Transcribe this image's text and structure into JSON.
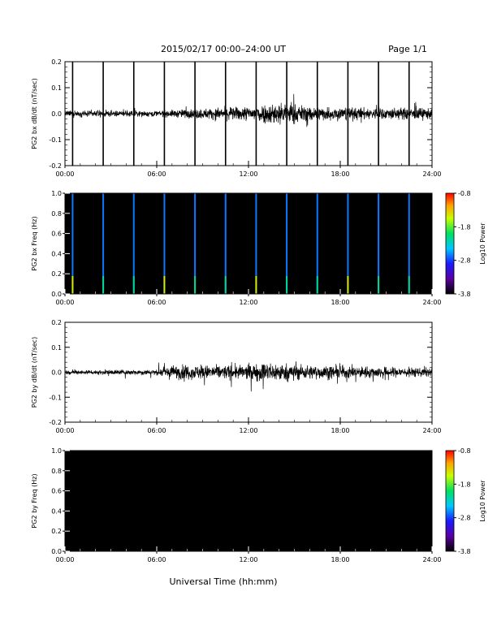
{
  "header": {
    "title": "2015/02/17  00:00–24:00 UT",
    "page": "Page 1/1"
  },
  "xaxis_label": "Universal Time (hh:mm)",
  "chart_data": [
    {
      "type": "line",
      "ylabel": "PG2 bx dB/dt (nT/sec)",
      "ylim": [
        -0.2,
        0.2
      ],
      "yticks": [
        "0.2",
        "0.1",
        "0.0",
        "-0.1",
        "-0.2"
      ],
      "xlim": [
        0,
        24
      ],
      "xtick_labels": [
        "00:00",
        "06:00",
        "12:00",
        "18:00",
        "24:00"
      ],
      "calibration_pulses_hours": [
        0.5,
        2.5,
        4.5,
        6.5,
        8.5,
        10.5,
        12.5,
        14.5,
        16.5,
        18.5,
        20.5,
        22.5
      ],
      "noise_amplitude_profile": [
        [
          0,
          0.02
        ],
        [
          6,
          0.02
        ],
        [
          10,
          0.04
        ],
        [
          12,
          0.05
        ],
        [
          14,
          0.08
        ],
        [
          16,
          0.05
        ],
        [
          20,
          0.04
        ],
        [
          24,
          0.04
        ]
      ]
    },
    {
      "type": "heatmap",
      "ylabel": "PG2 bx Freq (Hz)",
      "ylim": [
        0,
        1.0
      ],
      "yticks": [
        "1.0",
        "0.8",
        "0.6",
        "0.4",
        "0.2",
        "0.0"
      ],
      "xlim": [
        0,
        24
      ],
      "xtick_labels": [
        "00:00",
        "06:00",
        "12:00",
        "18:00",
        "24:00"
      ],
      "colorbar": {
        "label": "Log10 Power",
        "min": -3.8,
        "max": -0.8,
        "ticks": [
          "-0.8",
          "-1.8",
          "-2.8",
          "-3.8"
        ]
      },
      "calibration_lines_hours": [
        0.5,
        2.5,
        4.5,
        6.5,
        8.5,
        10.5,
        12.5,
        14.5,
        16.5,
        18.5,
        20.5,
        22.5
      ]
    },
    {
      "type": "line",
      "ylabel": "PG2 by dB/dt (nT/sec)",
      "ylim": [
        -0.2,
        0.2
      ],
      "yticks": [
        "0.2",
        "0.1",
        "0.0",
        "-0.1",
        "-0.2"
      ],
      "xlim": [
        0,
        24
      ],
      "xtick_labels": [
        "00:00",
        "06:00",
        "12:00",
        "18:00",
        "24:00"
      ],
      "noise_amplitude_profile": [
        [
          0,
          0.015
        ],
        [
          6,
          0.02
        ],
        [
          7,
          0.05
        ],
        [
          12,
          0.05
        ],
        [
          13,
          0.07
        ],
        [
          16,
          0.05
        ],
        [
          20,
          0.04
        ],
        [
          24,
          0.03
        ]
      ]
    },
    {
      "type": "heatmap",
      "ylabel": "PG2 by Freq (Hz)",
      "ylim": [
        0,
        1.0
      ],
      "yticks": [
        "1.0",
        "0.8",
        "0.6",
        "0.4",
        "0.2",
        "0.0"
      ],
      "xlim": [
        0,
        24
      ],
      "xtick_labels": [
        "00:00",
        "06:00",
        "12:00",
        "18:00",
        "24:00"
      ],
      "colorbar": {
        "label": "Log10 Power",
        "min": -3.8,
        "max": -0.8,
        "ticks": [
          "-0.8",
          "-1.8",
          "-2.8",
          "-3.8"
        ]
      }
    }
  ]
}
